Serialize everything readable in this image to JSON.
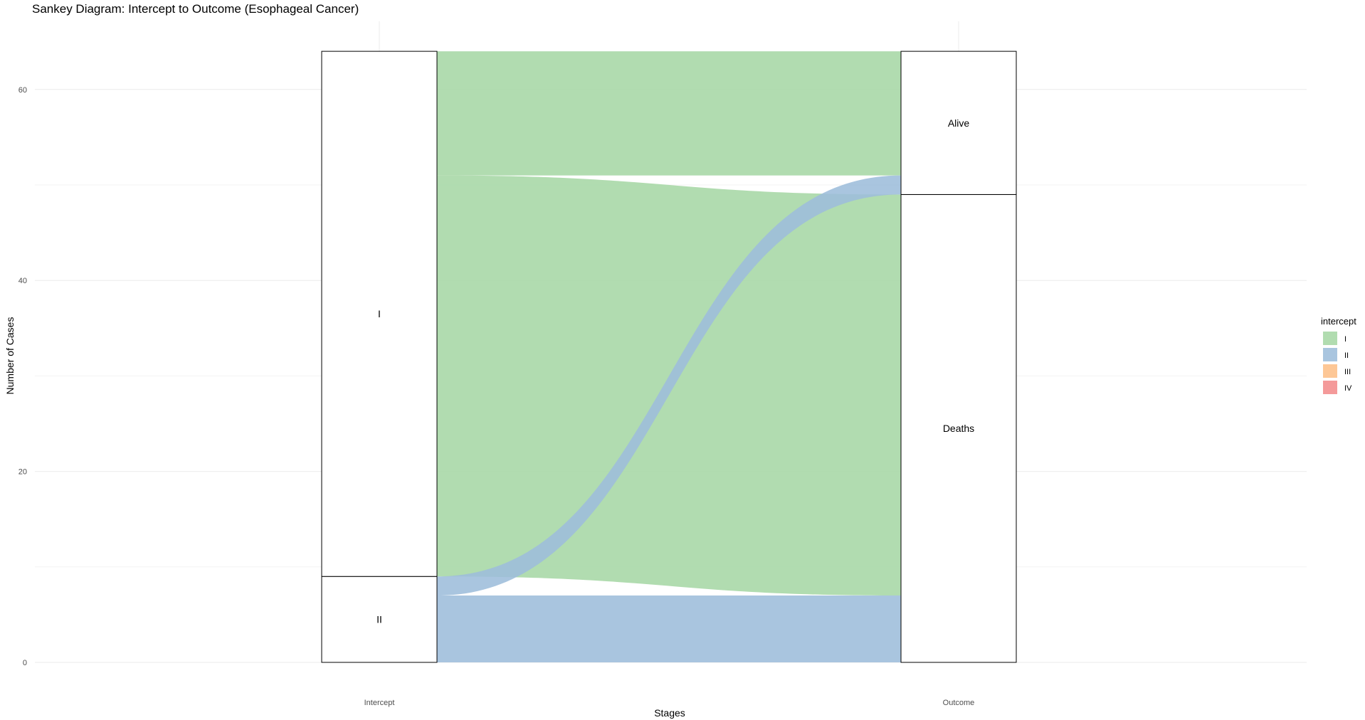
{
  "chart_data": {
    "type": "sankey",
    "title": "Sankey Diagram: Intercept to Outcome (Esophageal Cancer)",
    "xlabel": "Stages",
    "ylabel": "Number of Cases",
    "axes": [
      "Intercept",
      "Outcome"
    ],
    "ylim": [
      0,
      64
    ],
    "yticks": [
      0,
      20,
      40,
      60
    ],
    "grid": true,
    "legend_title": "intercept",
    "legend_position": "right",
    "legend": [
      {
        "name": "I",
        "color": "#a6d7a5"
      },
      {
        "name": "II",
        "color": "#9dbddb"
      },
      {
        "name": "III",
        "color": "#fdbf87"
      },
      {
        "name": "IV",
        "color": "#f28c8c"
      }
    ],
    "strata": {
      "Intercept": [
        {
          "label": "II",
          "value": 9
        },
        {
          "label": "I",
          "value": 55
        }
      ],
      "Outcome": [
        {
          "label": "Deaths",
          "value": 49
        },
        {
          "label": "Alive",
          "value": 15
        }
      ]
    },
    "flows": [
      {
        "from": "I",
        "to": "Alive",
        "value": 13,
        "group": "I"
      },
      {
        "from": "I",
        "to": "Deaths",
        "value": 42,
        "group": "I"
      },
      {
        "from": "II",
        "to": "Alive",
        "value": 2,
        "group": "II"
      },
      {
        "from": "II",
        "to": "Deaths",
        "value": 7,
        "group": "II"
      }
    ]
  }
}
